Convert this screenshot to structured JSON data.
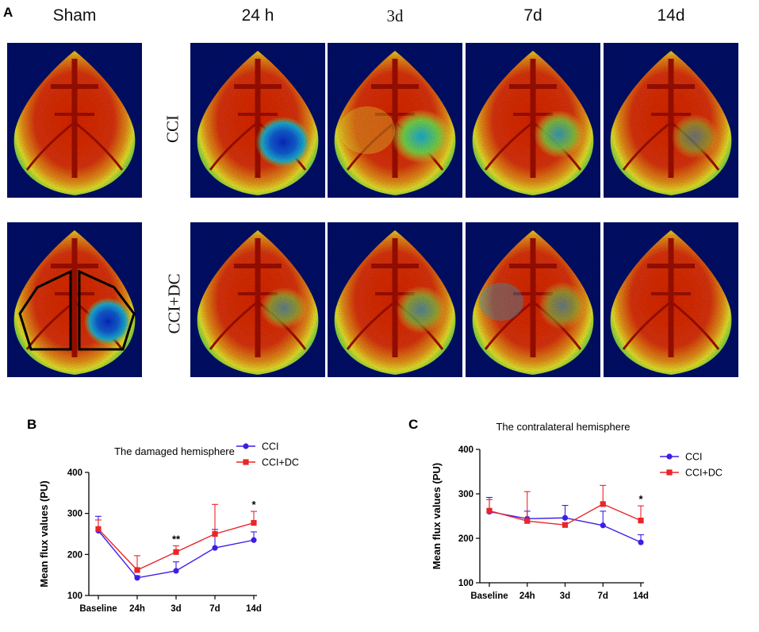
{
  "panel_labels": {
    "a": "A",
    "b": "B",
    "c": "C"
  },
  "image_grid": {
    "column_headers": [
      "Sham",
      "24 h",
      "3d",
      "7d",
      "14d"
    ],
    "row_labels": [
      "CCI",
      "CCI+DC"
    ],
    "colors": {
      "dark": "#0a1470",
      "blue": "#1030d0",
      "cyan": "#20b8e0",
      "green": "#7ee04a",
      "yellow": "#f4f030",
      "red": "#e82a10",
      "darkred": "#a81208"
    }
  },
  "chart_data": [
    {
      "type": "line",
      "title": "The damaged hemisphere",
      "xlabel": "",
      "ylabel": "Mean flux values (PU)",
      "categories": [
        "Baseline",
        "24h",
        "3d",
        "7d",
        "14d"
      ],
      "ylim": [
        100,
        400
      ],
      "yticks": [
        "100",
        "200",
        "300",
        "400"
      ],
      "series": [
        {
          "name": "CCI",
          "color": "#3a1ee8",
          "marker": "circle",
          "values": [
            258,
            143,
            160,
            216,
            235
          ],
          "err": [
            35,
            5,
            22,
            45,
            20
          ]
        },
        {
          "name": "CCI+DC",
          "color": "#e8262a",
          "marker": "square",
          "values": [
            262,
            162,
            206,
            250,
            277
          ],
          "err": [
            22,
            35,
            15,
            72,
            28
          ]
        }
      ],
      "annotations": [
        {
          "category": "3d",
          "text": "**"
        },
        {
          "category": "14d",
          "text": "*"
        }
      ],
      "legend": "top-right"
    },
    {
      "type": "line",
      "title": "The contralateral hemisphere",
      "xlabel": "",
      "ylabel": "Mean flux values (PU)",
      "categories": [
        "Baseline",
        "24h",
        "3d",
        "7d",
        "14d"
      ],
      "ylim": [
        100,
        400
      ],
      "yticks": [
        "100",
        "200",
        "300",
        "400"
      ],
      "series": [
        {
          "name": "CCI",
          "color": "#3a1ee8",
          "marker": "circle",
          "values": [
            260,
            244,
            246,
            229,
            191
          ],
          "err": [
            32,
            17,
            28,
            32,
            17
          ]
        },
        {
          "name": "CCI+DC",
          "color": "#e8262a",
          "marker": "square",
          "values": [
            262,
            239,
            230,
            277,
            240
          ],
          "err": [
            25,
            66,
            5,
            42,
            33
          ]
        }
      ],
      "annotations": [
        {
          "category": "14d",
          "text": "*"
        }
      ],
      "legend": "top-right"
    }
  ]
}
